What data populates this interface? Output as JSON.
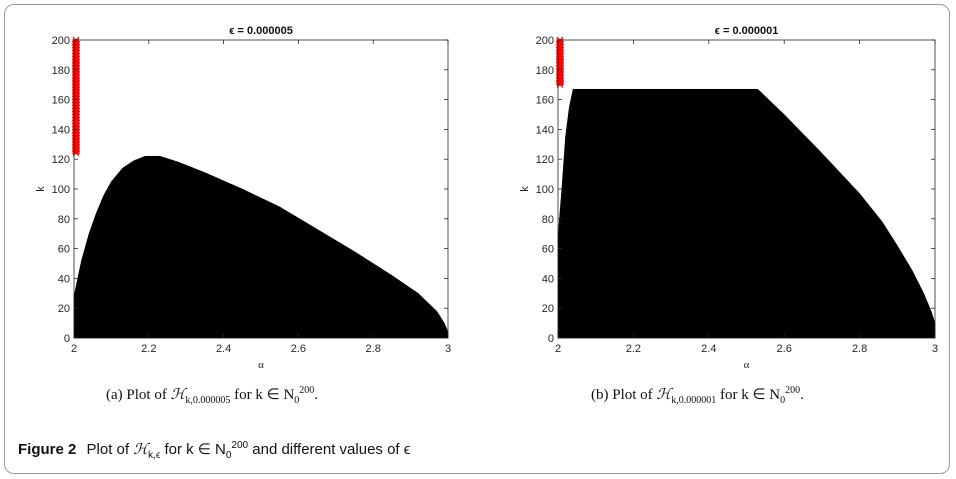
{
  "chart_data": [
    {
      "type": "heatmap",
      "title": "ϵ = 0.000005",
      "xlabel": "α",
      "ylabel": "k",
      "xlim": [
        2,
        3
      ],
      "ylim": [
        0,
        200
      ],
      "xticks": [
        "2",
        "2.2",
        "2.4",
        "2.6",
        "2.8",
        "3"
      ],
      "yticks": [
        "0",
        "20",
        "40",
        "60",
        "80",
        "100",
        "120",
        "140",
        "160",
        "180",
        "200"
      ],
      "region_boundary": [
        [
          2.0,
          0
        ],
        [
          2.0,
          28
        ],
        [
          2.01,
          40
        ],
        [
          2.02,
          52
        ],
        [
          2.04,
          70
        ],
        [
          2.06,
          84
        ],
        [
          2.08,
          96
        ],
        [
          2.1,
          105
        ],
        [
          2.13,
          114
        ],
        [
          2.16,
          119
        ],
        [
          2.19,
          122
        ],
        [
          2.23,
          122
        ],
        [
          2.28,
          118
        ],
        [
          2.35,
          111
        ],
        [
          2.45,
          100
        ],
        [
          2.55,
          88
        ],
        [
          2.65,
          73
        ],
        [
          2.75,
          58
        ],
        [
          2.85,
          42
        ],
        [
          2.92,
          30
        ],
        [
          2.97,
          18
        ],
        [
          2.99,
          10
        ],
        [
          3.0,
          4
        ],
        [
          3.0,
          0
        ]
      ],
      "marker_series": {
        "x": 2.0,
        "k_range": [
          124,
          200
        ],
        "color": "#ff0000"
      },
      "fill_color": "#000000"
    },
    {
      "type": "heatmap",
      "title": "ϵ = 0.000001",
      "xlabel": "α",
      "ylabel": "k",
      "xlim": [
        2,
        3
      ],
      "ylim": [
        0,
        200
      ],
      "xticks": [
        "2",
        "2.2",
        "2.4",
        "2.6",
        "2.8",
        "3"
      ],
      "yticks": [
        "0",
        "20",
        "40",
        "60",
        "80",
        "100",
        "120",
        "140",
        "160",
        "180",
        "200"
      ],
      "region_boundary": [
        [
          2.0,
          0
        ],
        [
          2.0,
          68
        ],
        [
          2.01,
          100
        ],
        [
          2.02,
          135
        ],
        [
          2.03,
          155
        ],
        [
          2.04,
          167
        ],
        [
          2.53,
          167
        ],
        [
          2.6,
          150
        ],
        [
          2.7,
          124
        ],
        [
          2.8,
          97
        ],
        [
          2.86,
          78
        ],
        [
          2.9,
          62
        ],
        [
          2.94,
          45
        ],
        [
          2.97,
          30
        ],
        [
          2.99,
          18
        ],
        [
          3.0,
          10
        ],
        [
          3.0,
          0
        ]
      ],
      "marker_series": {
        "x": 2.0,
        "k_range": [
          170,
          200
        ],
        "color": "#ff0000"
      },
      "fill_color": "#000000"
    }
  ],
  "subcaptions": [
    {
      "prefix": "(a) Plot of",
      "set_symbol": "ℋ",
      "set_subscript": "k,0.000005",
      "middle": "for k ∈ N",
      "sub": "0",
      "sup": "200",
      "suffix": "."
    },
    {
      "prefix": "(b) Plot of",
      "set_symbol": "ℋ",
      "set_subscript": "k,0.000001",
      "middle": "for k ∈ N",
      "sub": "0",
      "sup": "200",
      "suffix": "."
    }
  ],
  "caption": {
    "label": "Figure 2",
    "text_before": "Plot of",
    "set_symbol": "ℋ",
    "set_subscript": "k,ϵ",
    "text_middle": "for k ∈ N",
    "sub": "0",
    "sup": "200",
    "text_after": "and different values of ϵ"
  }
}
